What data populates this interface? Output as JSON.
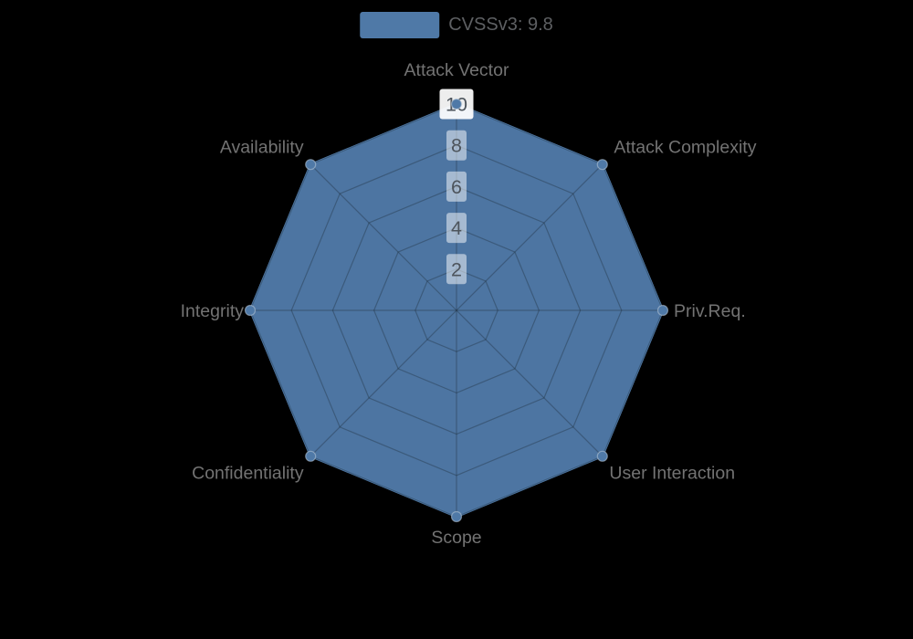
{
  "legend": {
    "label": "CVSSv3: 9.8"
  },
  "colors": {
    "background": "#000000",
    "series": "#4F79A7",
    "series_fill_opacity": 0.97,
    "grid_line": "rgba(25,35,45,0.33)",
    "axis_label": "#737373",
    "tick_text": "#4d545c",
    "tick_box": "rgba(255,255,255,0.5)",
    "tick_box_outer": "rgba(255,255,255,0.93)",
    "marker_rim": "rgba(185,200,215,0.55)"
  },
  "chart_data": {
    "type": "radar",
    "title": "",
    "legend_entries": [
      {
        "name": "CVSSv3: 9.8",
        "color": "#4F79A7"
      }
    ],
    "legend_position": "top-center",
    "indicators": [
      "Attack Vector",
      "Attack Complexity",
      "Priv.Req.",
      "User Interaction",
      "Scope",
      "Confidentiality",
      "Integrity",
      "Availability"
    ],
    "axis_min": 0,
    "axis_max": 10,
    "tick_values": [
      2,
      4,
      6,
      8,
      10
    ],
    "grid": "spider-octagon",
    "series": [
      {
        "name": "CVSSv3: 9.8",
        "values": [
          10,
          10,
          10,
          10,
          10,
          10,
          10,
          10
        ]
      }
    ]
  }
}
